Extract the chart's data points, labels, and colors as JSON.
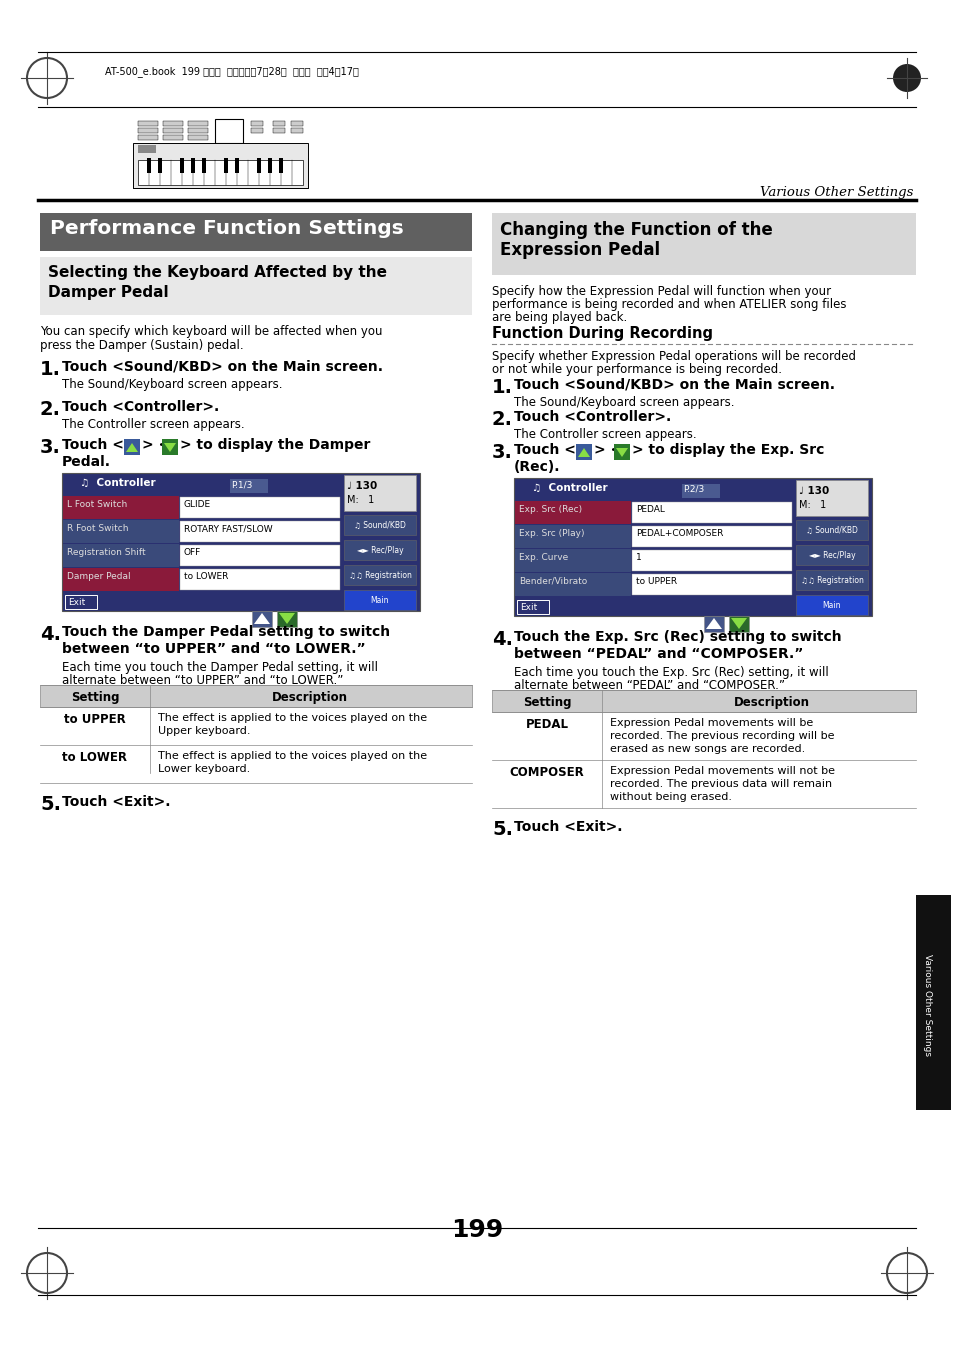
{
  "page_bg": "#ffffff",
  "header_text": "AT-500_e.book  199 ページ  ２００８年7月28日  月曜日  午後4時17分",
  "section_left_title": "Performance Function Settings",
  "section_left_title_bg": "#606060",
  "subsection_left_title_line1": "Selecting the Keyboard Affected by the",
  "subsection_left_title_line2": "Damper Pedal",
  "subsection_left_bg": "#e8e8e8",
  "left_body1_line1": "You can specify which keyboard will be affected when you",
  "left_body1_line2": "press the Damper (Sustain) pedal.",
  "section_right_title_line1": "Changing the Function of the",
  "section_right_title_line2": "Expression Pedal",
  "section_right_title_bg": "#d8d8d8",
  "right_body1_line1": "Specify how the Expression Pedal will function when your",
  "right_body1_line2": "performance is being recorded and when ATELIER song files",
  "right_body1_line3": "are being played back.",
  "right_func_title": "Function During Recording",
  "right_body2_line1": "Specify whether Expression Pedal operations will be recorded",
  "right_body2_line2": "or not while your performance is being recorded.",
  "page_number": "199",
  "sidebar_text": "Various Other Settings",
  "top_header_text": "Various Other Settings",
  "controller_screen_rows": [
    {
      "label": "L Foot Switch",
      "value": "GLIDE",
      "highlight": true
    },
    {
      "label": "R Foot Switch",
      "value": "ROTARY FAST/SLOW",
      "highlight": false
    },
    {
      "label": "Registration Shift",
      "value": "OFF",
      "highlight": false
    },
    {
      "label": "Damper Pedal",
      "value": "to LOWER",
      "highlight": true
    }
  ],
  "controller_screen2_rows": [
    {
      "label": "Exp. Src (Rec)",
      "value": "PEDAL",
      "highlight": true
    },
    {
      "label": "Exp. Src (Play)",
      "value": "PEDAL+COMPOSER",
      "highlight": false
    },
    {
      "label": "Exp. Curve",
      "value": "1",
      "highlight": false
    },
    {
      "label": "Bender/Vibrato",
      "value": "to UPPER",
      "highlight": false
    }
  ],
  "table1_rows": [
    {
      "setting": "to UPPER",
      "desc1": "The effect is applied to the voices played on the",
      "desc2": "Upper keyboard."
    },
    {
      "setting": "to LOWER",
      "desc1": "The effect is applied to the voices played on the",
      "desc2": "Lower keyboard."
    }
  ],
  "table2_rows": [
    {
      "setting": "PEDAL",
      "desc1": "Expression Pedal movements will be",
      "desc2": "recorded. The previous recording will be",
      "desc3": "erased as new songs are recorded."
    },
    {
      "setting": "COMPOSER",
      "desc1": "Expression Pedal movements will not be",
      "desc2": "recorded. The previous data will remain",
      "desc3": "without being erased."
    }
  ],
  "btn_up_color": "#3a5a9a",
  "btn_down_color": "#2a7a2a",
  "btn_arrow_color": "#88dd44",
  "screen_bg": "#2a3070",
  "screen_row_highlight": "#8a1a3a",
  "screen_row_normal": "#3a4a7a",
  "screen_btn_main": "#2244cc",
  "screen_btn_normal": "#3a4a7a"
}
